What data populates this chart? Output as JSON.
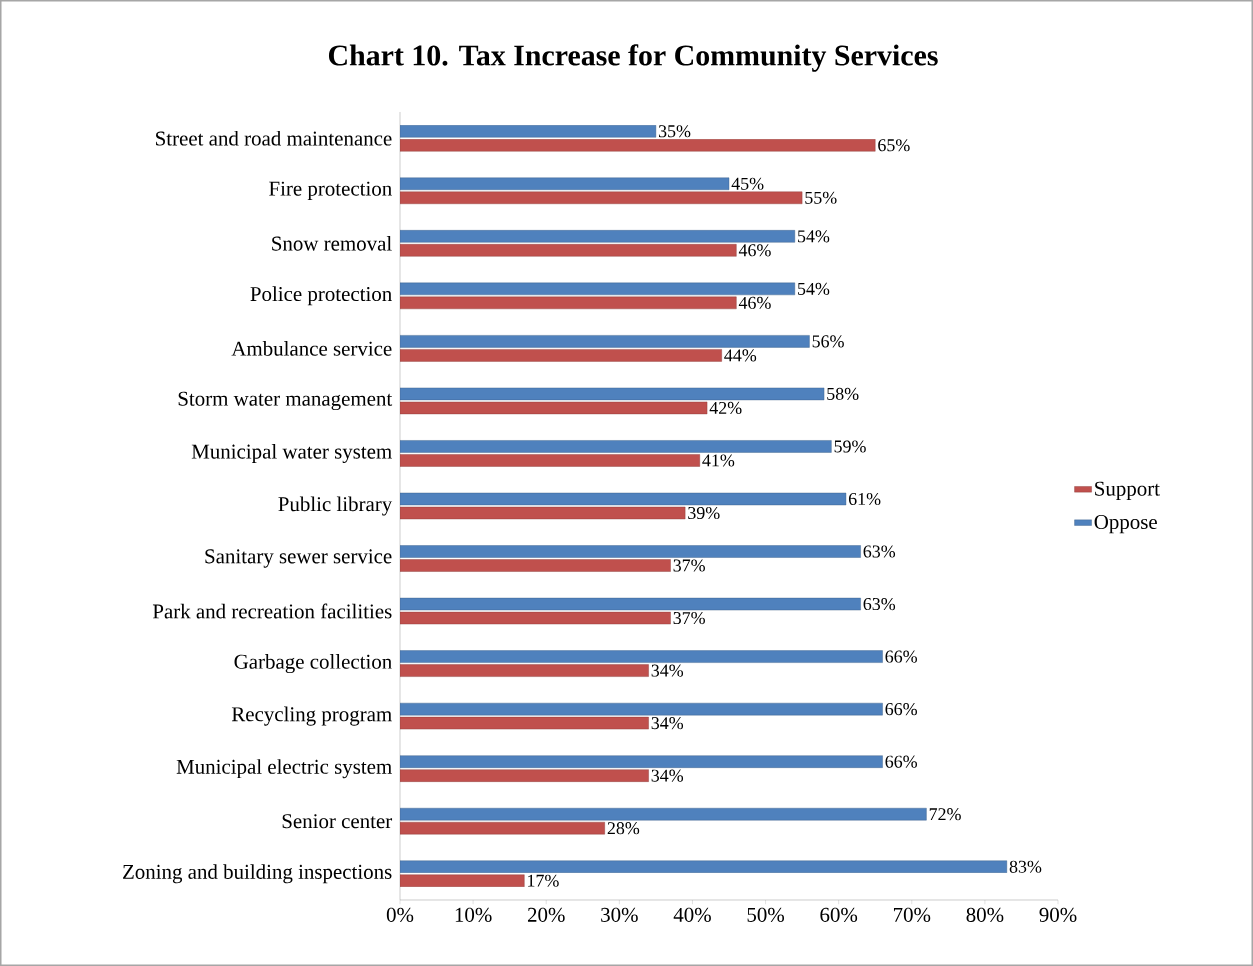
{
  "chart_data": {
    "type": "bar",
    "orientation": "horizontal",
    "title": "Chart 10. Tax Increase for Community Services",
    "categories": [
      "Street and road maintenance",
      "Fire protection",
      "Snow removal",
      "Police protection",
      "Ambulance service",
      "Storm water management",
      "Municipal water system",
      "Public library",
      "Sanitary sewer service",
      "Park and recreation facilities",
      "Garbage collection",
      "Recycling program",
      "Municipal electric system",
      "Senior center",
      "Zoning and building inspections"
    ],
    "series": [
      {
        "name": "Support",
        "color": "#c0504d",
        "values": [
          65,
          55,
          46,
          46,
          44,
          42,
          41,
          39,
          37,
          37,
          34,
          34,
          34,
          28,
          17
        ],
        "value_labels": [
          "65%",
          "55%",
          "46%",
          "46%",
          "44%",
          "42%",
          "41%",
          "39%",
          "37%",
          "37%",
          "34%",
          "34%",
          "34%",
          "28%",
          "17%"
        ]
      },
      {
        "name": "Oppose",
        "color": "#4f81bd",
        "values": [
          35,
          45,
          54,
          54,
          56,
          58,
          59,
          61,
          63,
          63,
          66,
          66,
          66,
          72,
          83
        ],
        "value_labels": [
          "35%",
          "45%",
          "54%",
          "54%",
          "56%",
          "58%",
          "59%",
          "61%",
          "63%",
          "63%",
          "66%",
          "66%",
          "66%",
          "72%",
          "83%"
        ]
      }
    ],
    "xlim": [
      0,
      90
    ],
    "xticks": [
      {
        "value": 0,
        "label": "0%"
      },
      {
        "value": 10,
        "label": "10%"
      },
      {
        "value": 20,
        "label": "20%"
      },
      {
        "value": 30,
        "label": "30%"
      },
      {
        "value": 40,
        "label": "40%"
      },
      {
        "value": 50,
        "label": "50%"
      },
      {
        "value": 60,
        "label": "60%"
      },
      {
        "value": 70,
        "label": "70%"
      },
      {
        "value": 80,
        "label": "80%"
      },
      {
        "value": 90,
        "label": "90%"
      }
    ],
    "legend": "right",
    "grid": false
  }
}
